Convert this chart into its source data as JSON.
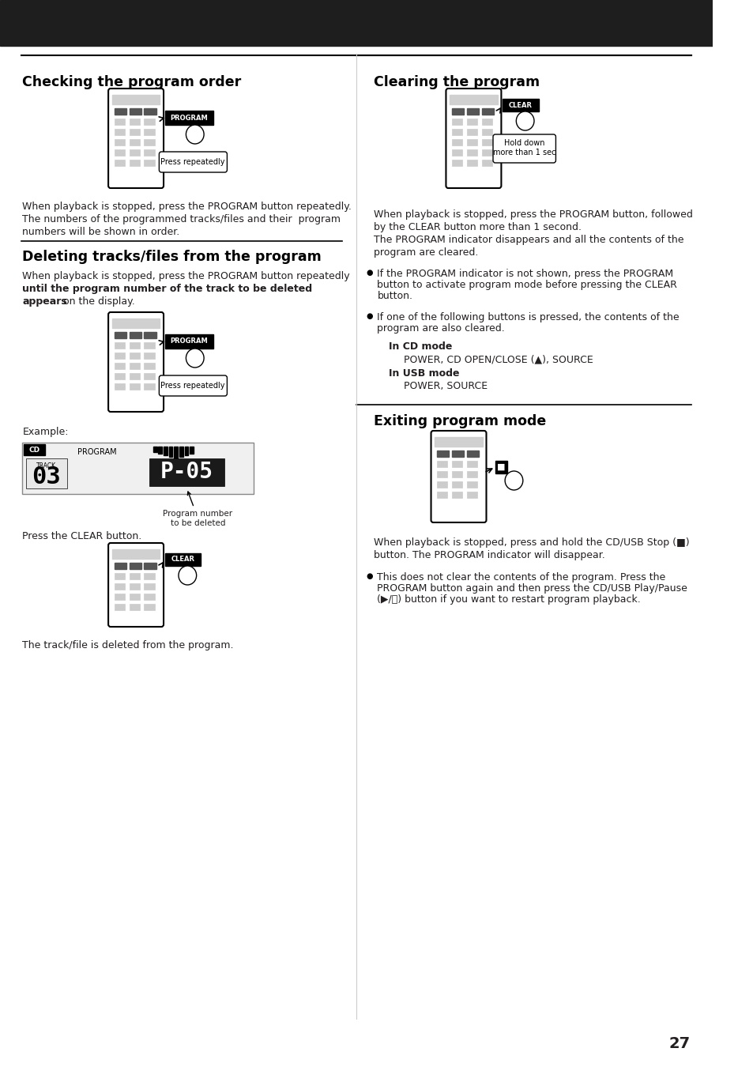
{
  "bg_color": "#ffffff",
  "header_color": "#1e1e1e",
  "text_color": "#231f20",
  "section_title_color": "#000000",
  "divider_color": "#000000",
  "page_number": "27",
  "left_column": {
    "section1_title": "Checking the program order",
    "section1_body": [
      "When playback is stopped, press the PROGRAM button repeatedly.",
      "The numbers of the programmed tracks/files and their  program",
      "numbers will be shown in order."
    ],
    "section2_title": "Deleting tracks/files from the program",
    "section2_body_pre": [
      "When playback is stopped, press the PROGRAM button repeatedly"
    ],
    "section2_body_bold": "until the program number of the track to be deleted",
    "section2_body_bold2": "appears",
    "section2_body_post": " on the display.",
    "example_label": "Example:",
    "press_clear_label": "Press the CLEAR button.",
    "track_deleted_label": "The track/file is deleted from the program.",
    "program_number_label": "Program number\nto be deleted"
  },
  "right_column": {
    "section1_title": "Clearing the program",
    "section1_body": [
      "When playback is stopped, press the PROGRAM button, followed",
      "by the CLEAR button more than 1 second.",
      "The PROGRAM indicator disappears and all the contents of the",
      "program are cleared."
    ],
    "bullet1": "If the PROGRAM indicator is not shown, press the PROGRAM button to activate program mode before pressing the CLEAR button.",
    "bullet2": "If one of the following buttons is pressed, the contents of the program are also cleared.",
    "in_cd_mode_label": "In CD mode",
    "in_cd_mode_text": "POWER, CD OPEN/CLOSE (▲), SOURCE",
    "in_usb_mode_label": "In USB mode",
    "in_usb_mode_text": "POWER, SOURCE",
    "section2_title": "Exiting program mode",
    "section2_body": [
      "When playback is stopped, press and hold the CD/USB Stop (■)",
      "button. The PROGRAM indicator will disappear."
    ],
    "bullet3": "This does not clear the contents of the program. Press the PROGRAM button again and then press the CD/USB Play/Pause (▶/⏸) button if you want to restart program playback."
  }
}
